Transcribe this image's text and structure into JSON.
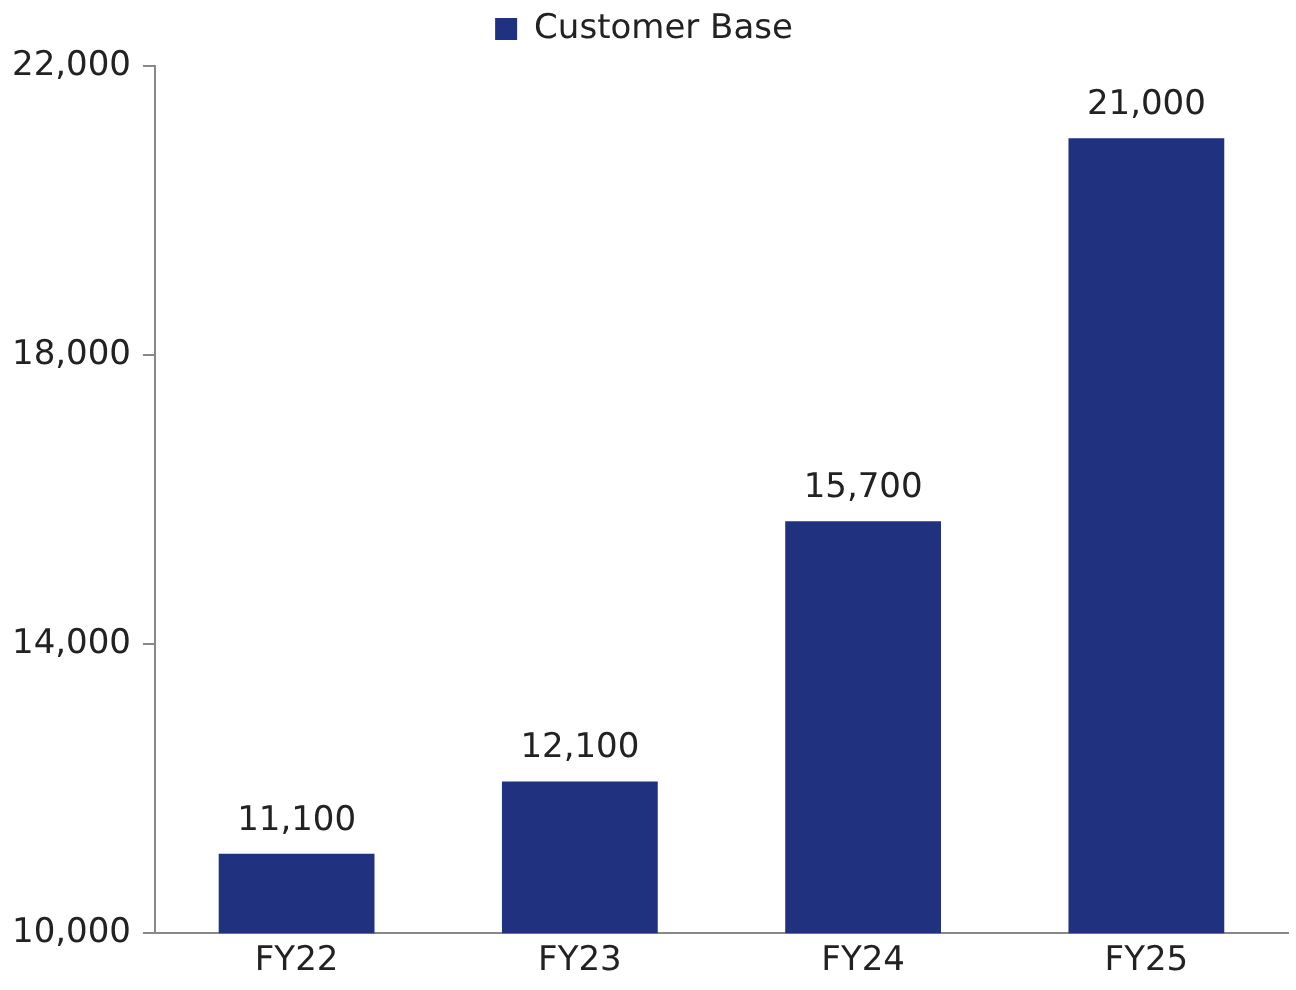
{
  "chart_data": {
    "type": "bar",
    "categories": [
      "FY22",
      "FY23",
      "FY24",
      "FY25"
    ],
    "series": [
      {
        "name": "Customer Base",
        "color": "#20317f",
        "values": [
          11100,
          12100,
          15700,
          21000
        ],
        "value_labels": [
          "11,100",
          "12,100",
          "15,700",
          "21,000"
        ]
      }
    ],
    "ylim": [
      10000,
      22000
    ],
    "yticks": [
      {
        "value": 10000,
        "label": "10,000"
      },
      {
        "value": 14000,
        "label": "14,000"
      },
      {
        "value": 18000,
        "label": "18,000"
      },
      {
        "value": 22000,
        "label": "22,000"
      }
    ],
    "grid": false,
    "legend": "top"
  }
}
